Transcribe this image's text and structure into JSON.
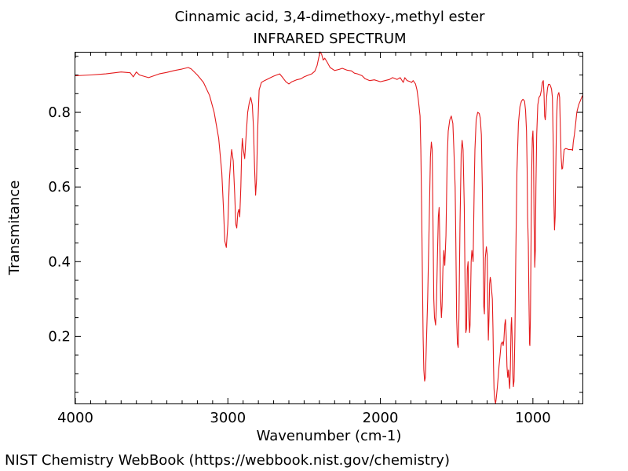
{
  "chart_data": {
    "type": "line",
    "title": "Cinnamic acid, 3,4-dimethoxy-,methyl ester",
    "subtitle": "INFRARED SPECTRUM",
    "xlabel": "Wavenumber (cm-1)",
    "ylabel": "Transmitance",
    "xlim": [
      4000,
      675
    ],
    "ylim": [
      0.02,
      0.96
    ],
    "x_ticks": [
      4000,
      3000,
      2000,
      1000
    ],
    "y_ticks": [
      0.2,
      0.4,
      0.6,
      0.8
    ],
    "x_tick_labels": [
      "4000",
      "3000",
      "2000",
      "1000"
    ],
    "y_tick_labels": [
      "0.2",
      "0.4",
      "0.6",
      "0.8"
    ],
    "grid": false,
    "series": [
      {
        "color": "#e41a1c",
        "points": [
          [
            4000,
            0.898
          ],
          [
            3900,
            0.9
          ],
          [
            3800,
            0.903
          ],
          [
            3700,
            0.908
          ],
          [
            3640,
            0.906
          ],
          [
            3620,
            0.895
          ],
          [
            3600,
            0.908
          ],
          [
            3580,
            0.9
          ],
          [
            3520,
            0.893
          ],
          [
            3450,
            0.903
          ],
          [
            3400,
            0.907
          ],
          [
            3350,
            0.912
          ],
          [
            3300,
            0.916
          ],
          [
            3260,
            0.92
          ],
          [
            3240,
            0.916
          ],
          [
            3200,
            0.9
          ],
          [
            3160,
            0.88
          ],
          [
            3120,
            0.845
          ],
          [
            3090,
            0.8
          ],
          [
            3060,
            0.73
          ],
          [
            3040,
            0.64
          ],
          [
            3030,
            0.55
          ],
          [
            3020,
            0.455
          ],
          [
            3010,
            0.438
          ],
          [
            3000,
            0.5
          ],
          [
            2990,
            0.62
          ],
          [
            2980,
            0.68
          ],
          [
            2975,
            0.7
          ],
          [
            2965,
            0.67
          ],
          [
            2955,
            0.58
          ],
          [
            2948,
            0.5
          ],
          [
            2942,
            0.49
          ],
          [
            2935,
            0.53
          ],
          [
            2928,
            0.54
          ],
          [
            2922,
            0.52
          ],
          [
            2915,
            0.6
          ],
          [
            2910,
            0.69
          ],
          [
            2905,
            0.73
          ],
          [
            2900,
            0.705
          ],
          [
            2895,
            0.69
          ],
          [
            2890,
            0.676
          ],
          [
            2880,
            0.74
          ],
          [
            2870,
            0.8
          ],
          [
            2860,
            0.825
          ],
          [
            2850,
            0.84
          ],
          [
            2840,
            0.82
          ],
          [
            2832,
            0.76
          ],
          [
            2825,
            0.65
          ],
          [
            2818,
            0.578
          ],
          [
            2812,
            0.62
          ],
          [
            2805,
            0.75
          ],
          [
            2795,
            0.86
          ],
          [
            2780,
            0.88
          ],
          [
            2760,
            0.885
          ],
          [
            2720,
            0.893
          ],
          [
            2700,
            0.897
          ],
          [
            2680,
            0.9
          ],
          [
            2660,
            0.903
          ],
          [
            2640,
            0.893
          ],
          [
            2620,
            0.882
          ],
          [
            2600,
            0.876
          ],
          [
            2580,
            0.882
          ],
          [
            2550,
            0.887
          ],
          [
            2520,
            0.89
          ],
          [
            2500,
            0.895
          ],
          [
            2470,
            0.9
          ],
          [
            2450,
            0.903
          ],
          [
            2430,
            0.91
          ],
          [
            2415,
            0.925
          ],
          [
            2405,
            0.945
          ],
          [
            2395,
            0.962
          ],
          [
            2385,
            0.955
          ],
          [
            2375,
            0.94
          ],
          [
            2365,
            0.945
          ],
          [
            2350,
            0.935
          ],
          [
            2330,
            0.92
          ],
          [
            2300,
            0.912
          ],
          [
            2270,
            0.915
          ],
          [
            2250,
            0.918
          ],
          [
            2220,
            0.913
          ],
          [
            2190,
            0.911
          ],
          [
            2170,
            0.905
          ],
          [
            2150,
            0.903
          ],
          [
            2120,
            0.898
          ],
          [
            2100,
            0.89
          ],
          [
            2070,
            0.885
          ],
          [
            2040,
            0.887
          ],
          [
            2000,
            0.882
          ],
          [
            1970,
            0.885
          ],
          [
            1940,
            0.888
          ],
          [
            1920,
            0.893
          ],
          [
            1890,
            0.888
          ],
          [
            1870,
            0.893
          ],
          [
            1850,
            0.88
          ],
          [
            1840,
            0.893
          ],
          [
            1825,
            0.885
          ],
          [
            1810,
            0.883
          ],
          [
            1795,
            0.88
          ],
          [
            1785,
            0.885
          ],
          [
            1770,
            0.876
          ],
          [
            1760,
            0.86
          ],
          [
            1750,
            0.83
          ],
          [
            1740,
            0.79
          ],
          [
            1735,
            0.7
          ],
          [
            1730,
            0.56
          ],
          [
            1725,
            0.38
          ],
          [
            1720,
            0.2
          ],
          [
            1715,
            0.11
          ],
          [
            1710,
            0.08
          ],
          [
            1705,
            0.09
          ],
          [
            1700,
            0.16
          ],
          [
            1690,
            0.3
          ],
          [
            1680,
            0.5
          ],
          [
            1672,
            0.68
          ],
          [
            1666,
            0.72
          ],
          [
            1660,
            0.7
          ],
          [
            1655,
            0.5
          ],
          [
            1650,
            0.3
          ],
          [
            1645,
            0.25
          ],
          [
            1638,
            0.23
          ],
          [
            1632,
            0.3
          ],
          [
            1625,
            0.43
          ],
          [
            1620,
            0.52
          ],
          [
            1615,
            0.545
          ],
          [
            1610,
            0.45
          ],
          [
            1605,
            0.3
          ],
          [
            1600,
            0.25
          ],
          [
            1596,
            0.28
          ],
          [
            1590,
            0.38
          ],
          [
            1584,
            0.43
          ],
          [
            1578,
            0.39
          ],
          [
            1570,
            0.47
          ],
          [
            1562,
            0.68
          ],
          [
            1555,
            0.75
          ],
          [
            1545,
            0.78
          ],
          [
            1535,
            0.79
          ],
          [
            1525,
            0.77
          ],
          [
            1518,
            0.7
          ],
          [
            1510,
            0.6
          ],
          [
            1505,
            0.45
          ],
          [
            1500,
            0.25
          ],
          [
            1495,
            0.18
          ],
          [
            1490,
            0.17
          ],
          [
            1485,
            0.25
          ],
          [
            1478,
            0.5
          ],
          [
            1470,
            0.69
          ],
          [
            1464,
            0.725
          ],
          [
            1458,
            0.7
          ],
          [
            1450,
            0.55
          ],
          [
            1445,
            0.35
          ],
          [
            1440,
            0.21
          ],
          [
            1435,
            0.22
          ],
          [
            1430,
            0.38
          ],
          [
            1425,
            0.4
          ],
          [
            1420,
            0.25
          ],
          [
            1415,
            0.21
          ],
          [
            1412,
            0.23
          ],
          [
            1405,
            0.4
          ],
          [
            1400,
            0.43
          ],
          [
            1392,
            0.4
          ],
          [
            1385,
            0.6
          ],
          [
            1380,
            0.7
          ],
          [
            1372,
            0.78
          ],
          [
            1362,
            0.8
          ],
          [
            1352,
            0.797
          ],
          [
            1345,
            0.785
          ],
          [
            1338,
            0.74
          ],
          [
            1332,
            0.6
          ],
          [
            1327,
            0.45
          ],
          [
            1322,
            0.28
          ],
          [
            1318,
            0.26
          ],
          [
            1312,
            0.41
          ],
          [
            1305,
            0.44
          ],
          [
            1300,
            0.42
          ],
          [
            1296,
            0.3
          ],
          [
            1292,
            0.19
          ],
          [
            1288,
            0.25
          ],
          [
            1284,
            0.34
          ],
          [
            1280,
            0.358
          ],
          [
            1276,
            0.35
          ],
          [
            1270,
            0.32
          ],
          [
            1266,
            0.3
          ],
          [
            1262,
            0.22
          ],
          [
            1258,
            0.12
          ],
          [
            1255,
            0.06
          ],
          [
            1250,
            0.03
          ],
          [
            1245,
            0.02
          ],
          [
            1240,
            0.035
          ],
          [
            1234,
            0.06
          ],
          [
            1228,
            0.09
          ],
          [
            1222,
            0.12
          ],
          [
            1215,
            0.15
          ],
          [
            1208,
            0.18
          ],
          [
            1200,
            0.185
          ],
          [
            1195,
            0.175
          ],
          [
            1190,
            0.19
          ],
          [
            1185,
            0.23
          ],
          [
            1180,
            0.245
          ],
          [
            1175,
            0.2
          ],
          [
            1170,
            0.12
          ],
          [
            1165,
            0.09
          ],
          [
            1160,
            0.11
          ],
          [
            1156,
            0.08
          ],
          [
            1152,
            0.06
          ],
          [
            1148,
            0.11
          ],
          [
            1143,
            0.23
          ],
          [
            1140,
            0.25
          ],
          [
            1136,
            0.2
          ],
          [
            1132,
            0.1
          ],
          [
            1128,
            0.065
          ],
          [
            1124,
            0.08
          ],
          [
            1118,
            0.2
          ],
          [
            1112,
            0.42
          ],
          [
            1105,
            0.64
          ],
          [
            1095,
            0.77
          ],
          [
            1085,
            0.815
          ],
          [
            1075,
            0.83
          ],
          [
            1065,
            0.835
          ],
          [
            1055,
            0.83
          ],
          [
            1048,
            0.805
          ],
          [
            1042,
            0.75
          ],
          [
            1038,
            0.65
          ],
          [
            1035,
            0.52
          ],
          [
            1030,
            0.45
          ],
          [
            1026,
            0.3
          ],
          [
            1022,
            0.18
          ],
          [
            1020,
            0.175
          ],
          [
            1016,
            0.25
          ],
          [
            1012,
            0.45
          ],
          [
            1008,
            0.64
          ],
          [
            1004,
            0.73
          ],
          [
            1000,
            0.75
          ],
          [
            996,
            0.7
          ],
          [
            992,
            0.5
          ],
          [
            988,
            0.385
          ],
          [
            984,
            0.43
          ],
          [
            980,
            0.6
          ],
          [
            975,
            0.74
          ],
          [
            968,
            0.82
          ],
          [
            960,
            0.84
          ],
          [
            952,
            0.845
          ],
          [
            944,
            0.86
          ],
          [
            938,
            0.88
          ],
          [
            932,
            0.885
          ],
          [
            927,
            0.85
          ],
          [
            923,
            0.79
          ],
          [
            919,
            0.78
          ],
          [
            915,
            0.8
          ],
          [
            910,
            0.84
          ],
          [
            904,
            0.865
          ],
          [
            898,
            0.875
          ],
          [
            890,
            0.875
          ],
          [
            884,
            0.87
          ],
          [
            878,
            0.862
          ],
          [
            872,
            0.84
          ],
          [
            866,
            0.7
          ],
          [
            862,
            0.55
          ],
          [
            858,
            0.485
          ],
          [
            854,
            0.52
          ],
          [
            850,
            0.65
          ],
          [
            845,
            0.78
          ],
          [
            840,
            0.83
          ],
          [
            835,
            0.848
          ],
          [
            830,
            0.853
          ],
          [
            825,
            0.84
          ],
          [
            820,
            0.76
          ],
          [
            815,
            0.68
          ],
          [
            810,
            0.648
          ],
          [
            805,
            0.65
          ],
          [
            800,
            0.68
          ],
          [
            795,
            0.7
          ],
          [
            785,
            0.703
          ],
          [
            775,
            0.702
          ],
          [
            765,
            0.7
          ],
          [
            755,
            0.7
          ],
          [
            745,
            0.7
          ],
          [
            740,
            0.698
          ],
          [
            735,
            0.72
          ],
          [
            728,
            0.74
          ],
          [
            720,
            0.77
          ],
          [
            712,
            0.8
          ],
          [
            700,
            0.82
          ],
          [
            690,
            0.83
          ],
          [
            680,
            0.84
          ],
          [
            675,
            0.845
          ]
        ]
      }
    ]
  },
  "footer": "NIST Chemistry WebBook (https://webbook.nist.gov/chemistry)"
}
